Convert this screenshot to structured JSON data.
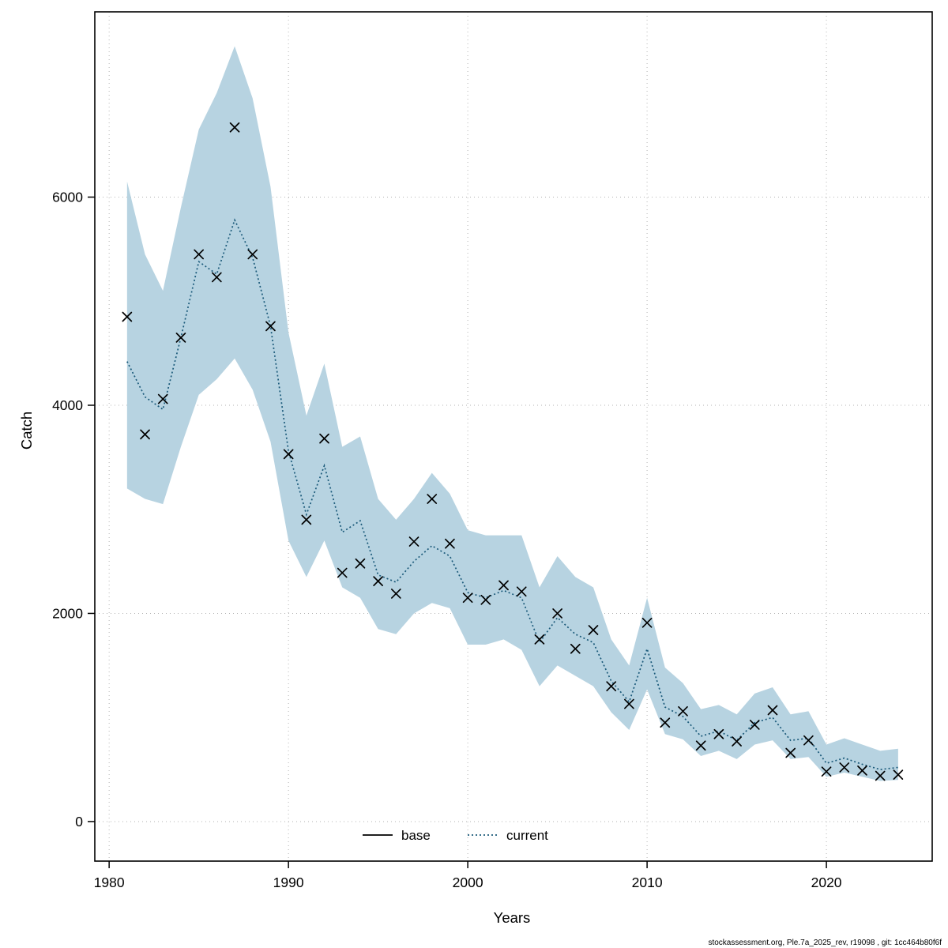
{
  "legend": {
    "base_label": "base",
    "current_label": "current"
  },
  "footer": {
    "citation": "stockassessment.org, Ple.7a_2025_rev, r19098 , git: 1cc464b80f6f"
  },
  "colors": {
    "band": "#b7d3e1",
    "current_line": "#1b5a7a",
    "base_marker": "#000000",
    "grid": "#b3b3b3",
    "box": "#000000"
  },
  "chart_data": {
    "type": "line",
    "title": "",
    "xlabel": "Years",
    "ylabel": "Catch",
    "grid": "dotted",
    "legend_position": "bottom-center",
    "x_ticks": [
      1980,
      1990,
      2000,
      2010,
      2020
    ],
    "y_ticks": [
      0,
      2000,
      4000,
      6000
    ],
    "xlim": [
      1979.2,
      2025.9
    ],
    "ylim": [
      -380,
      7780
    ],
    "x": [
      1981,
      1982,
      1983,
      1984,
      1985,
      1986,
      1987,
      1988,
      1989,
      1990,
      1991,
      1992,
      1993,
      1994,
      1995,
      1996,
      1997,
      1998,
      1999,
      2000,
      2001,
      2002,
      2003,
      2004,
      2005,
      2006,
      2007,
      2008,
      2009,
      2010,
      2011,
      2012,
      2013,
      2014,
      2015,
      2016,
      2017,
      2018,
      2019,
      2020,
      2021,
      2022,
      2023,
      2024
    ],
    "series": [
      {
        "name": "base",
        "style": "x-markers",
        "values": [
          4850,
          3720,
          4060,
          4650,
          5450,
          5230,
          6670,
          5450,
          4760,
          3530,
          2900,
          3680,
          2390,
          2480,
          2310,
          2190,
          2690,
          3100,
          2670,
          2150,
          2130,
          2270,
          2210,
          1750,
          2000,
          1660,
          1840,
          1300,
          1130,
          1910,
          950,
          1060,
          730,
          840,
          770,
          930,
          1070,
          660,
          780,
          480,
          520,
          490,
          440,
          450
        ]
      },
      {
        "name": "current",
        "style": "dotted-line",
        "values": [
          4420,
          4080,
          3960,
          4650,
          5380,
          5260,
          5780,
          5420,
          4760,
          3560,
          2950,
          3420,
          2780,
          2890,
          2370,
          2300,
          2500,
          2650,
          2550,
          2200,
          2150,
          2220,
          2150,
          1720,
          1960,
          1800,
          1720,
          1350,
          1150,
          1660,
          1100,
          1010,
          820,
          870,
          780,
          950,
          1000,
          780,
          800,
          560,
          610,
          550,
          500,
          520
        ]
      }
    ],
    "band": {
      "name": "current-confidence-interval",
      "lo": [
        3200,
        3100,
        3050,
        3600,
        4100,
        4250,
        4450,
        4150,
        3650,
        2700,
        2350,
        2700,
        2250,
        2150,
        1850,
        1800,
        2000,
        2100,
        2050,
        1700,
        1700,
        1750,
        1650,
        1300,
        1500,
        1400,
        1300,
        1050,
        880,
        1270,
        840,
        790,
        630,
        680,
        600,
        740,
        780,
        600,
        620,
        430,
        470,
        430,
        390,
        400
      ],
      "hi": [
        6150,
        5450,
        5100,
        5900,
        6650,
        7000,
        7450,
        6950,
        6100,
        4700,
        3900,
        4400,
        3600,
        3700,
        3100,
        2900,
        3100,
        3350,
        3150,
        2800,
        2750,
        2750,
        2750,
        2250,
        2550,
        2350,
        2250,
        1750,
        1500,
        2150,
        1480,
        1330,
        1080,
        1120,
        1030,
        1230,
        1290,
        1030,
        1060,
        740,
        800,
        740,
        680,
        700
      ]
    }
  }
}
